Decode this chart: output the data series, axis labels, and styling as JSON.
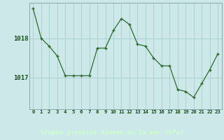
{
  "x": [
    0,
    1,
    2,
    3,
    4,
    5,
    6,
    7,
    8,
    9,
    10,
    11,
    12,
    13,
    14,
    15,
    16,
    17,
    18,
    19,
    20,
    21,
    22,
    23
  ],
  "y": [
    1018.75,
    1018.0,
    1017.8,
    1017.55,
    1017.05,
    1017.05,
    1017.05,
    1017.05,
    1017.75,
    1017.75,
    1018.2,
    1018.5,
    1018.35,
    1017.85,
    1017.8,
    1017.5,
    1017.3,
    1017.3,
    1016.7,
    1016.65,
    1016.5,
    1016.85,
    1017.2,
    1017.6
  ],
  "line_color": "#2d6a2d",
  "marker_color": "#2d6a2d",
  "bg_color": "#cce8e8",
  "grid_color": "#aacccc",
  "border_color": "#88aaaa",
  "bottom_bg": "#336633",
  "xlabel": "Graphe pression niveau de la mer (hPa)",
  "yticks": [
    1017,
    1018
  ],
  "ylim": [
    1016.2,
    1018.9
  ],
  "xlim": [
    -0.5,
    23.5
  ],
  "xtick_labels": [
    "0",
    "1",
    "2",
    "3",
    "4",
    "5",
    "6",
    "7",
    "8",
    "9",
    "10",
    "11",
    "12",
    "13",
    "14",
    "15",
    "16",
    "17",
    "18",
    "19",
    "20",
    "21",
    "22",
    "23"
  ]
}
